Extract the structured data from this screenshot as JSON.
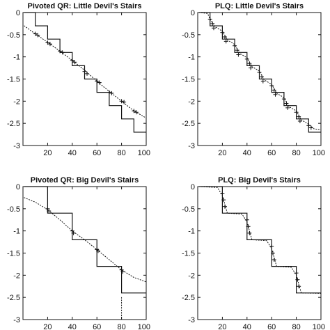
{
  "chart_data": [
    {
      "type": "line",
      "title": "Pivoted QR: Little Devil's Stairs",
      "xlim": [
        0,
        100
      ],
      "ylim": [
        -3,
        0
      ],
      "x_ticks": [
        20,
        40,
        60,
        80,
        100
      ],
      "y_ticks": [
        0,
        -0.5,
        -1,
        -1.5,
        -2,
        -2.5,
        -3
      ],
      "x_tick_labels": [
        "20",
        "40",
        "60",
        "80",
        "100"
      ],
      "y_tick_labels": [
        "0",
        "-0.5",
        "-1",
        "-1.5",
        "-2",
        "-2.5",
        "-3"
      ],
      "series": [
        {
          "style": "solid",
          "points": [
            [
              1,
              0
            ],
            [
              10,
              0
            ],
            [
              10,
              -0.3
            ],
            [
              20,
              -0.3
            ],
            [
              20,
              -0.6
            ],
            [
              30,
              -0.6
            ],
            [
              30,
              -0.9
            ],
            [
              40,
              -0.9
            ],
            [
              40,
              -1.2
            ],
            [
              50,
              -1.2
            ],
            [
              50,
              -1.5
            ],
            [
              60,
              -1.5
            ],
            [
              60,
              -1.8
            ],
            [
              70,
              -1.8
            ],
            [
              70,
              -2.1
            ],
            [
              80,
              -2.1
            ],
            [
              80,
              -2.4
            ],
            [
              90,
              -2.4
            ],
            [
              90,
              -2.7
            ],
            [
              100,
              -2.7
            ]
          ]
        },
        {
          "style": "dotted",
          "points": [
            [
              1,
              -0.3
            ],
            [
              10,
              -0.48
            ],
            [
              20,
              -0.67
            ],
            [
              30,
              -0.87
            ],
            [
              40,
              -1.08
            ],
            [
              50,
              -1.3
            ],
            [
              60,
              -1.55
            ],
            [
              70,
              -1.78
            ],
            [
              80,
              -2.0
            ],
            [
              90,
              -2.22
            ],
            [
              100,
              -2.38
            ]
          ]
        }
      ],
      "markers": [
        [
          10,
          -0.48
        ],
        [
          12,
          -0.51
        ],
        [
          20,
          -0.68
        ],
        [
          22,
          -0.71
        ],
        [
          30,
          -0.87
        ],
        [
          32,
          -0.9
        ],
        [
          40,
          -1.08
        ],
        [
          42,
          -1.12
        ],
        [
          50,
          -1.33
        ],
        [
          52,
          -1.38
        ],
        [
          60,
          -1.55
        ],
        [
          62,
          -1.58
        ],
        [
          70,
          -1.8
        ],
        [
          72,
          -1.82
        ],
        [
          80,
          -2.0
        ],
        [
          82,
          -2.02
        ],
        [
          90,
          -2.22
        ],
        [
          92,
          -2.25
        ]
      ]
    },
    {
      "type": "line",
      "title": "PLQ: Little Devil's Stairs",
      "xlim": [
        0,
        100
      ],
      "ylim": [
        -3,
        0
      ],
      "x_ticks": [
        20,
        40,
        60,
        80,
        100
      ],
      "y_ticks": [
        0,
        -0.5,
        -1,
        -1.5,
        -2,
        -2.5,
        -3
      ],
      "x_tick_labels": [
        "20",
        "40",
        "60",
        "80",
        "100"
      ],
      "y_tick_labels": [
        "0",
        "-0.5",
        "-1",
        "-1.5",
        "-2",
        "-2.5",
        "-3"
      ],
      "series": [
        {
          "style": "solid",
          "points": [
            [
              1,
              0
            ],
            [
              10,
              0
            ],
            [
              10,
              -0.3
            ],
            [
              20,
              -0.3
            ],
            [
              20,
              -0.6
            ],
            [
              30,
              -0.6
            ],
            [
              30,
              -0.9
            ],
            [
              40,
              -0.9
            ],
            [
              40,
              -1.2
            ],
            [
              50,
              -1.2
            ],
            [
              50,
              -1.5
            ],
            [
              60,
              -1.5
            ],
            [
              60,
              -1.8
            ],
            [
              70,
              -1.8
            ],
            [
              70,
              -2.1
            ],
            [
              80,
              -2.1
            ],
            [
              80,
              -2.4
            ],
            [
              90,
              -2.4
            ],
            [
              90,
              -2.7
            ],
            [
              100,
              -2.7
            ]
          ]
        },
        {
          "style": "dotted",
          "points": [
            [
              1,
              0
            ],
            [
              8,
              -0.02
            ],
            [
              10,
              -0.15
            ],
            [
              14,
              -0.32
            ],
            [
              20,
              -0.42
            ],
            [
              24,
              -0.62
            ],
            [
              30,
              -0.72
            ],
            [
              34,
              -0.92
            ],
            [
              40,
              -1.02
            ],
            [
              44,
              -1.22
            ],
            [
              50,
              -1.32
            ],
            [
              54,
              -1.52
            ],
            [
              60,
              -1.62
            ],
            [
              64,
              -1.82
            ],
            [
              70,
              -1.92
            ],
            [
              74,
              -2.12
            ],
            [
              80,
              -2.22
            ],
            [
              84,
              -2.42
            ],
            [
              90,
              -2.52
            ],
            [
              94,
              -2.62
            ],
            [
              100,
              -2.65
            ]
          ]
        }
      ],
      "markers": [
        [
          10,
          -0.15
        ],
        [
          12,
          -0.25
        ],
        [
          13,
          -0.35
        ],
        [
          20,
          -0.45
        ],
        [
          22,
          -0.55
        ],
        [
          23,
          -0.65
        ],
        [
          30,
          -0.75
        ],
        [
          32,
          -0.85
        ],
        [
          33,
          -0.95
        ],
        [
          40,
          -1.05
        ],
        [
          42,
          -1.15
        ],
        [
          43,
          -1.25
        ],
        [
          50,
          -1.35
        ],
        [
          52,
          -1.45
        ],
        [
          53,
          -1.55
        ],
        [
          60,
          -1.65
        ],
        [
          62,
          -1.75
        ],
        [
          63,
          -1.85
        ],
        [
          70,
          -1.95
        ],
        [
          72,
          -2.05
        ],
        [
          73,
          -2.15
        ],
        [
          80,
          -2.25
        ],
        [
          82,
          -2.35
        ],
        [
          83,
          -2.45
        ],
        [
          90,
          -2.55
        ],
        [
          92,
          -2.6
        ]
      ]
    },
    {
      "type": "line",
      "title": "Pivoted QR: Big Devil's Stairs",
      "xlim": [
        0,
        100
      ],
      "ylim": [
        -3,
        0
      ],
      "x_ticks": [
        20,
        40,
        60,
        80,
        100
      ],
      "y_ticks": [
        0,
        -0.5,
        -1,
        -1.5,
        -2,
        -2.5,
        -3
      ],
      "x_tick_labels": [
        "20",
        "40",
        "60",
        "80",
        "100"
      ],
      "y_tick_labels": [
        "0",
        "-0.5",
        "-1",
        "-1.5",
        "-2",
        "-2.5",
        "-3"
      ],
      "series": [
        {
          "style": "solid",
          "points": [
            [
              1,
              0
            ],
            [
              20,
              0
            ],
            [
              20,
              -0.6
            ],
            [
              40,
              -0.6
            ],
            [
              40,
              -1.2
            ],
            [
              60,
              -1.2
            ],
            [
              60,
              -1.8
            ],
            [
              80,
              -1.8
            ],
            [
              80,
              -2.4
            ],
            [
              100,
              -2.4
            ]
          ]
        },
        {
          "style": "dotted",
          "points": [
            [
              1,
              -0.25
            ],
            [
              10,
              -0.35
            ],
            [
              20,
              -0.52
            ],
            [
              30,
              -0.75
            ],
            [
              40,
              -1.0
            ],
            [
              50,
              -1.2
            ],
            [
              60,
              -1.42
            ],
            [
              70,
              -1.65
            ],
            [
              80,
              -1.88
            ],
            [
              90,
              -2.05
            ],
            [
              100,
              -2.15
            ]
          ]
        },
        {
          "style": "dotted",
          "points": [
            [
              80,
              -2.5
            ],
            [
              80,
              -3
            ]
          ]
        }
      ],
      "markers": [
        [
          20,
          -0.5
        ],
        [
          21,
          -0.55
        ],
        [
          40,
          -1.0
        ],
        [
          41,
          -1.05
        ],
        [
          60,
          -1.42
        ],
        [
          61,
          -1.45
        ],
        [
          80,
          -1.88
        ],
        [
          81,
          -1.92
        ]
      ]
    },
    {
      "type": "line",
      "title": "PLQ: Big Devil's Stairs",
      "xlim": [
        0,
        100
      ],
      "ylim": [
        -3,
        0
      ],
      "x_ticks": [
        20,
        40,
        60,
        80,
        100
      ],
      "y_ticks": [
        0,
        -0.5,
        -1,
        -1.5,
        -2,
        -2.5,
        -3
      ],
      "x_tick_labels": [
        "20",
        "40",
        "60",
        "80",
        "100"
      ],
      "y_tick_labels": [
        "0",
        "-0.5",
        "-1",
        "-1.5",
        "-2",
        "-2.5",
        "-3"
      ],
      "series": [
        {
          "style": "solid",
          "points": [
            [
              1,
              0
            ],
            [
              20,
              0
            ],
            [
              20,
              -0.6
            ],
            [
              40,
              -0.6
            ],
            [
              40,
              -1.2
            ],
            [
              60,
              -1.2
            ],
            [
              60,
              -1.8
            ],
            [
              80,
              -1.8
            ],
            [
              80,
              -2.4
            ],
            [
              100,
              -2.4
            ]
          ]
        },
        {
          "style": "dotted",
          "points": [
            [
              1,
              0
            ],
            [
              16,
              -0.02
            ],
            [
              20,
              -0.2
            ],
            [
              24,
              -0.6
            ],
            [
              36,
              -0.62
            ],
            [
              40,
              -0.8
            ],
            [
              44,
              -1.2
            ],
            [
              56,
              -1.22
            ],
            [
              60,
              -1.4
            ],
            [
              64,
              -1.8
            ],
            [
              76,
              -1.82
            ],
            [
              80,
              -2.0
            ],
            [
              84,
              -2.4
            ],
            [
              100,
              -2.41
            ]
          ]
        }
      ],
      "markers": [
        [
          20,
          -0.15
        ],
        [
          21,
          -0.3
        ],
        [
          22,
          -0.45
        ],
        [
          40,
          -0.75
        ],
        [
          41,
          -0.9
        ],
        [
          42,
          -1.05
        ],
        [
          60,
          -1.35
        ],
        [
          61,
          -1.5
        ],
        [
          62,
          -1.65
        ],
        [
          80,
          -1.95
        ],
        [
          81,
          -2.1
        ],
        [
          82,
          -2.25
        ]
      ]
    }
  ]
}
